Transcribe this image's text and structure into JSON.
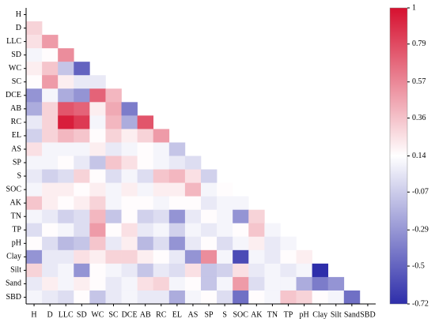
{
  "chart_data": {
    "type": "heatmap",
    "categories": [
      "H",
      "D",
      "LLC",
      "SD",
      "WC",
      "SC",
      "DCE",
      "AB",
      "RC",
      "EL",
      "AS",
      "SP",
      "S",
      "SOC",
      "AK",
      "TN",
      "TP",
      "pH",
      "Clay",
      "Silt",
      "Sand",
      "SBD"
    ],
    "values": [
      [],
      [
        0.3
      ],
      [
        0.25,
        0.5
      ],
      [
        0.1,
        0.15,
        0.55
      ],
      [
        0.2,
        0.35,
        -0.1,
        -0.5
      ],
      [
        0.15,
        0.5,
        0.2,
        0.05,
        0.05
      ],
      [
        -0.3,
        0.1,
        -0.2,
        -0.3,
        0.7,
        0.4
      ],
      [
        -0.2,
        0.3,
        0.75,
        0.7,
        0.2,
        0.45,
        -0.4
      ],
      [
        0.05,
        0.3,
        0.95,
        0.85,
        0.1,
        0.4,
        -0.2,
        0.75
      ],
      [
        -0.05,
        0.3,
        0.4,
        0.35,
        0.15,
        0.3,
        0.2,
        0.3,
        0.5
      ],
      [
        0.25,
        0.1,
        0.1,
        0.1,
        0.2,
        0.05,
        0.1,
        0.15,
        0.1,
        -0.1
      ],
      [
        0.1,
        0.1,
        0.15,
        0.05,
        -0.1,
        0.35,
        0.25,
        0.15,
        0.1,
        0.05,
        0.0
      ],
      [
        0.05,
        -0.05,
        0.0,
        0.3,
        0.15,
        0.0,
        0.1,
        0.0,
        0.35,
        0.4,
        0.25,
        -0.05
      ],
      [
        0.1,
        0.2,
        0.2,
        0.15,
        0.2,
        0.1,
        0.2,
        0.1,
        0.2,
        0.2,
        0.4,
        0.1,
        0.15
      ],
      [
        0.35,
        0.2,
        0.15,
        0.2,
        0.3,
        0.1,
        0.15,
        0.15,
        0.1,
        0.15,
        0.15,
        0.05,
        0.1,
        0.1
      ],
      [
        0.1,
        0.05,
        -0.05,
        0.0,
        0.4,
        -0.1,
        0.15,
        -0.05,
        0.0,
        -0.3,
        0.05,
        0.15,
        0.1,
        -0.3,
        0.3
      ],
      [
        0.0,
        0.15,
        0.1,
        0.0,
        0.5,
        0.15,
        0.25,
        0.05,
        0.1,
        -0.05,
        0.1,
        0.05,
        0.1,
        0.15,
        0.35,
        0.1
      ],
      [
        0.15,
        0.0,
        -0.15,
        -0.1,
        0.35,
        0.05,
        0.2,
        -0.15,
        0.0,
        -0.3,
        0.05,
        0.15,
        0.0,
        0.1,
        0.2,
        0.05,
        0.1
      ],
      [
        -0.3,
        0.05,
        0.05,
        0.25,
        0.2,
        0.3,
        0.3,
        0.2,
        0.15,
        0.05,
        -0.3,
        0.55,
        0.1,
        -0.6,
        0.1,
        0.05,
        0.15,
        0.2
      ],
      [
        0.3,
        0.05,
        0.1,
        -0.3,
        0.15,
        0.1,
        0.05,
        -0.1,
        0.05,
        0.0,
        0.25,
        -0.1,
        -0.05,
        0.25,
        0.05,
        0.1,
        0.05,
        0.1,
        -0.72
      ],
      [
        0.05,
        0.2,
        0.1,
        0.2,
        0.15,
        0.05,
        0.1,
        0.25,
        0.3,
        0.1,
        0.15,
        -0.1,
        0.1,
        0.5,
        0.0,
        0.1,
        0.1,
        -0.2,
        -0.4,
        -0.3
      ],
      [
        0.1,
        0.05,
        0.0,
        0.15,
        -0.1,
        0.05,
        0.1,
        0.05,
        0.05,
        -0.2,
        0.1,
        0.15,
        0.0,
        -0.45,
        0.15,
        0.1,
        0.35,
        0.3,
        0.15,
        0.1,
        -0.45
      ]
    ],
    "clim": [
      -0.72,
      1
    ],
    "colorbar_ticks": [
      1,
      0.79,
      0.57,
      0.36,
      0.14,
      -0.07,
      -0.29,
      -0.5,
      -0.72
    ],
    "colors": [
      "#2e2eaa",
      "#ffffff",
      "#d6102f"
    ]
  }
}
